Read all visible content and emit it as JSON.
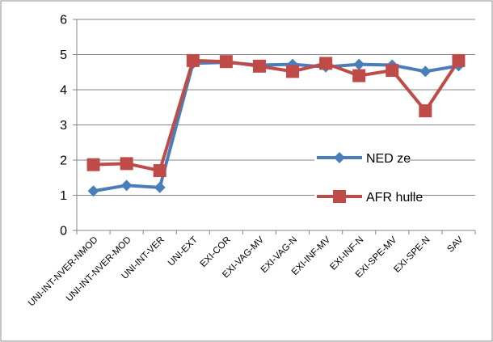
{
  "chart_data": {
    "type": "line",
    "categories": [
      "UNI-INT-NVER-NMOD",
      "UNI-INT-NVER-MOD",
      "UNI-INT-VER",
      "UNI-EXT",
      "EXI-COR",
      "EXI-VAG-MV",
      "EXI-VAG-N",
      "EXI-INF-MV",
      "EXI-INF-N",
      "EXI-SPE-MV",
      "EXI-SPE-N",
      "SAV"
    ],
    "series": [
      {
        "name": "NED ze",
        "color": "#4a7ebb",
        "marker": "diamond",
        "values": [
          1.12,
          1.28,
          1.22,
          4.75,
          4.78,
          4.7,
          4.72,
          4.65,
          4.72,
          4.7,
          4.52,
          4.68
        ]
      },
      {
        "name": "AFR hulle",
        "color": "#be4b48",
        "marker": "square",
        "values": [
          1.87,
          1.9,
          1.7,
          4.83,
          4.8,
          4.67,
          4.52,
          4.75,
          4.4,
          4.55,
          3.4,
          4.83
        ]
      }
    ],
    "ylim": [
      0,
      6
    ],
    "yticks": [
      "0",
      "1",
      "2",
      "3",
      "4",
      "5",
      "6"
    ],
    "grid": true,
    "legend": "right"
  }
}
